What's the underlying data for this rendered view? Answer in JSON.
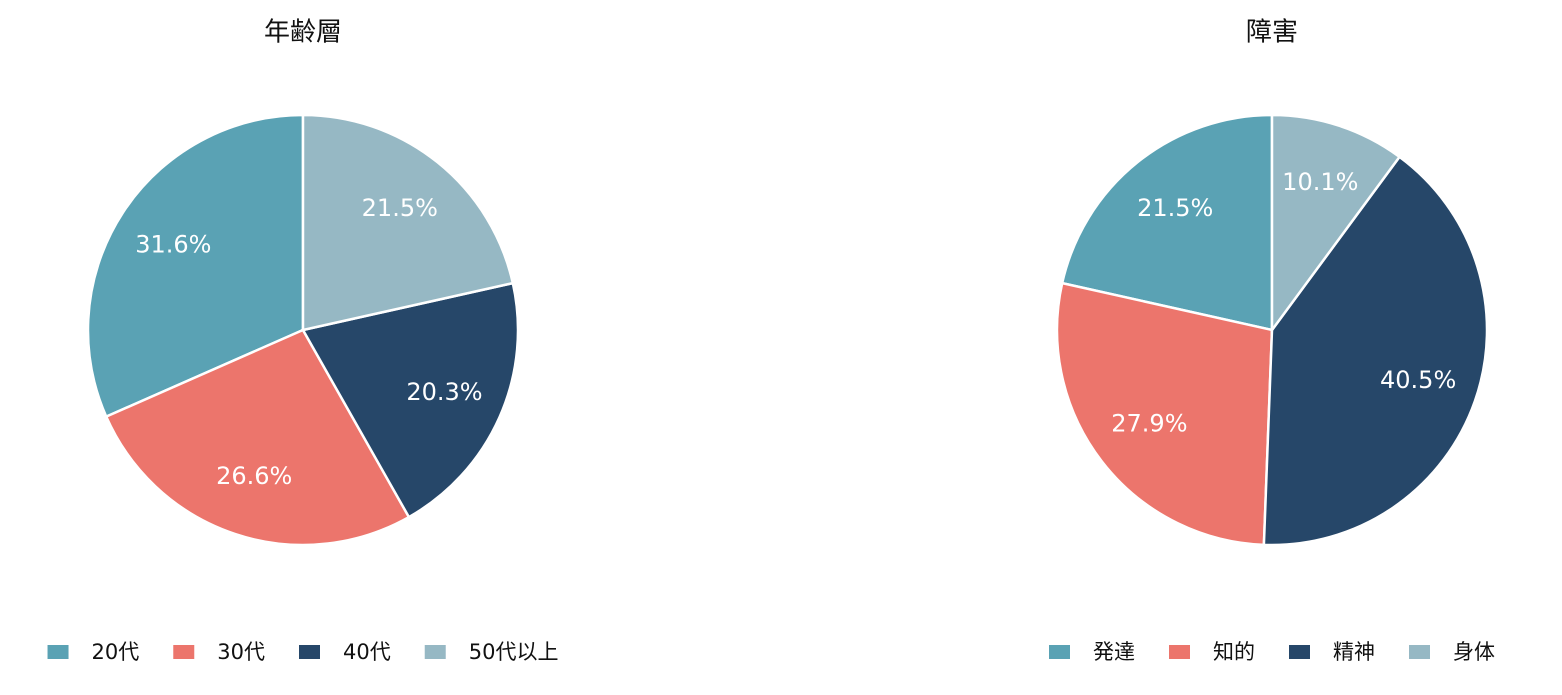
{
  "chart_data": [
    {
      "type": "pie",
      "title": "年齢層",
      "categories": [
        "20代",
        "30代",
        "40代",
        "50代以上"
      ],
      "values": [
        31.6,
        26.6,
        20.3,
        21.5
      ],
      "value_labels": [
        "31.6%",
        "26.6%",
        "20.3%",
        "21.5%"
      ],
      "colors": [
        "#5aa2b4",
        "#ec756c",
        "#264769",
        "#96b8c4"
      ],
      "legend": "bottom"
    },
    {
      "type": "pie",
      "title": "障害",
      "categories": [
        "発達",
        "知的",
        "精神",
        "身体"
      ],
      "values": [
        21.5,
        27.9,
        40.5,
        10.1
      ],
      "value_labels": [
        "21.5%",
        "27.9%",
        "40.5%",
        "10.1%"
      ],
      "colors": [
        "#5aa2b4",
        "#ec756c",
        "#264769",
        "#96b8c4"
      ],
      "legend": "bottom"
    }
  ]
}
